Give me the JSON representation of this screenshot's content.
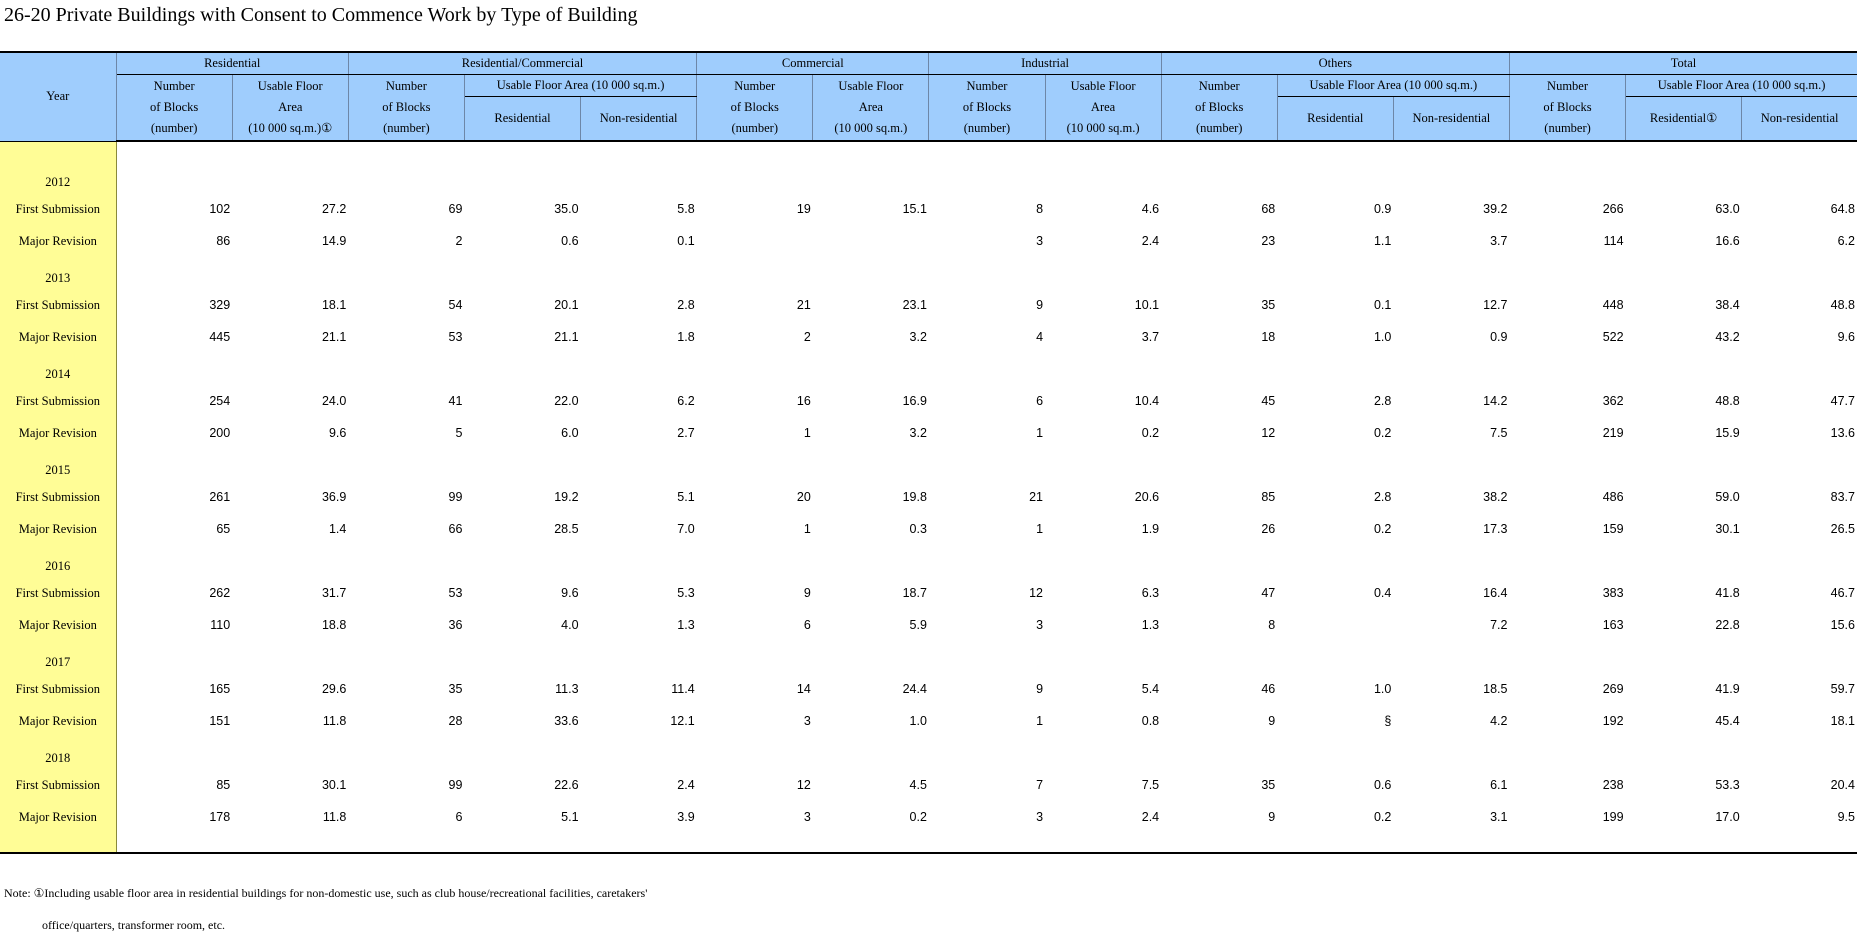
{
  "title": "26-20  Private Buildings with Consent to Commence Work by Type of Building",
  "header": {
    "year": "Year",
    "groups": {
      "residential": "Residential",
      "res_commercial": "Residential/Commercial",
      "commercial": "Commercial",
      "industrial": "Industrial",
      "others": "Others",
      "total": "Total"
    },
    "num_blocks_1": "Number",
    "num_blocks_2": "of Blocks",
    "num_blocks_3": "(number)",
    "usable_1": "Usable Floor",
    "usable_2": "Area",
    "usable_3": "(10 000 sq.m.)",
    "usable_res_3": "(10 000 sq.m.)①",
    "usable_span": "Usable Floor Area (10 000 sq.m.)",
    "residential": "Residential",
    "residential_note": "Residential①",
    "non_residential": "Non-residential"
  },
  "rows": [
    {
      "type": "year",
      "label": "2012"
    },
    {
      "type": "data",
      "label": "First Submission",
      "values": [
        "102",
        "27.2",
        "69",
        "35.0",
        "5.8",
        "19",
        "15.1",
        "8",
        "4.6",
        "68",
        "0.9",
        "39.2",
        "266",
        "63.0",
        "64.8"
      ]
    },
    {
      "type": "data",
      "label": "Major Revision",
      "values": [
        "86",
        "14.9",
        "2",
        "0.6",
        "0.1",
        "",
        "",
        "3",
        "2.4",
        "23",
        "1.1",
        "3.7",
        "114",
        "16.6",
        "6.2"
      ]
    },
    {
      "type": "year",
      "label": "2013"
    },
    {
      "type": "data",
      "label": "First Submission",
      "values": [
        "329",
        "18.1",
        "54",
        "20.1",
        "2.8",
        "21",
        "23.1",
        "9",
        "10.1",
        "35",
        "0.1",
        "12.7",
        "448",
        "38.4",
        "48.8"
      ]
    },
    {
      "type": "data",
      "label": "Major Revision",
      "values": [
        "445",
        "21.1",
        "53",
        "21.1",
        "1.8",
        "2",
        "3.2",
        "4",
        "3.7",
        "18",
        "1.0",
        "0.9",
        "522",
        "43.2",
        "9.6"
      ]
    },
    {
      "type": "year",
      "label": "2014"
    },
    {
      "type": "data",
      "label": "First Submission",
      "values": [
        "254",
        "24.0",
        "41",
        "22.0",
        "6.2",
        "16",
        "16.9",
        "6",
        "10.4",
        "45",
        "2.8",
        "14.2",
        "362",
        "48.8",
        "47.7"
      ]
    },
    {
      "type": "data",
      "label": "Major Revision",
      "values": [
        "200",
        "9.6",
        "5",
        "6.0",
        "2.7",
        "1",
        "3.2",
        "1",
        "0.2",
        "12",
        "0.2",
        "7.5",
        "219",
        "15.9",
        "13.6"
      ]
    },
    {
      "type": "year",
      "label": "2015"
    },
    {
      "type": "data",
      "label": "First Submission",
      "values": [
        "261",
        "36.9",
        "99",
        "19.2",
        "5.1",
        "20",
        "19.8",
        "21",
        "20.6",
        "85",
        "2.8",
        "38.2",
        "486",
        "59.0",
        "83.7"
      ]
    },
    {
      "type": "data",
      "label": "Major Revision",
      "values": [
        "65",
        "1.4",
        "66",
        "28.5",
        "7.0",
        "1",
        "0.3",
        "1",
        "1.9",
        "26",
        "0.2",
        "17.3",
        "159",
        "30.1",
        "26.5"
      ]
    },
    {
      "type": "year",
      "label": "2016"
    },
    {
      "type": "data",
      "label": "First Submission",
      "values": [
        "262",
        "31.7",
        "53",
        "9.6",
        "5.3",
        "9",
        "18.7",
        "12",
        "6.3",
        "47",
        "0.4",
        "16.4",
        "383",
        "41.8",
        "46.7"
      ]
    },
    {
      "type": "data",
      "label": "Major Revision",
      "values": [
        "110",
        "18.8",
        "36",
        "4.0",
        "1.3",
        "6",
        "5.9",
        "3",
        "1.3",
        "8",
        "",
        "7.2",
        "163",
        "22.8",
        "15.6"
      ]
    },
    {
      "type": "year",
      "label": "2017"
    },
    {
      "type": "data",
      "label": "First Submission",
      "values": [
        "165",
        "29.6",
        "35",
        "11.3",
        "11.4",
        "14",
        "24.4",
        "9",
        "5.4",
        "46",
        "1.0",
        "18.5",
        "269",
        "41.9",
        "59.7"
      ]
    },
    {
      "type": "data",
      "label": "Major Revision",
      "values": [
        "151",
        "11.8",
        "28",
        "33.6",
        "12.1",
        "3",
        "1.0",
        "1",
        "0.8",
        "9",
        "§",
        "4.2",
        "192",
        "45.4",
        "18.1"
      ]
    },
    {
      "type": "year",
      "label": "2018"
    },
    {
      "type": "data",
      "label": "First Submission",
      "values": [
        "85",
        "30.1",
        "99",
        "22.6",
        "2.4",
        "12",
        "4.5",
        "7",
        "7.5",
        "35",
        "0.6",
        "6.1",
        "238",
        "53.3",
        "20.4"
      ]
    },
    {
      "type": "data",
      "label": "Major Revision",
      "values": [
        "178",
        "11.8",
        "6",
        "5.1",
        "3.9",
        "3",
        "0.2",
        "3",
        "2.4",
        "9",
        "0.2",
        "3.1",
        "199",
        "17.0",
        "9.5"
      ]
    }
  ],
  "note_line1": "Note: ①Including usable floor area in residential buildings for non-domestic use, such as club house/recreational facilities, caretakers'",
  "note_line2": "office/quarters, transformer room, etc.",
  "colors": {
    "header_bg": "#9fcdfd",
    "year_bg": "#fffd96"
  }
}
